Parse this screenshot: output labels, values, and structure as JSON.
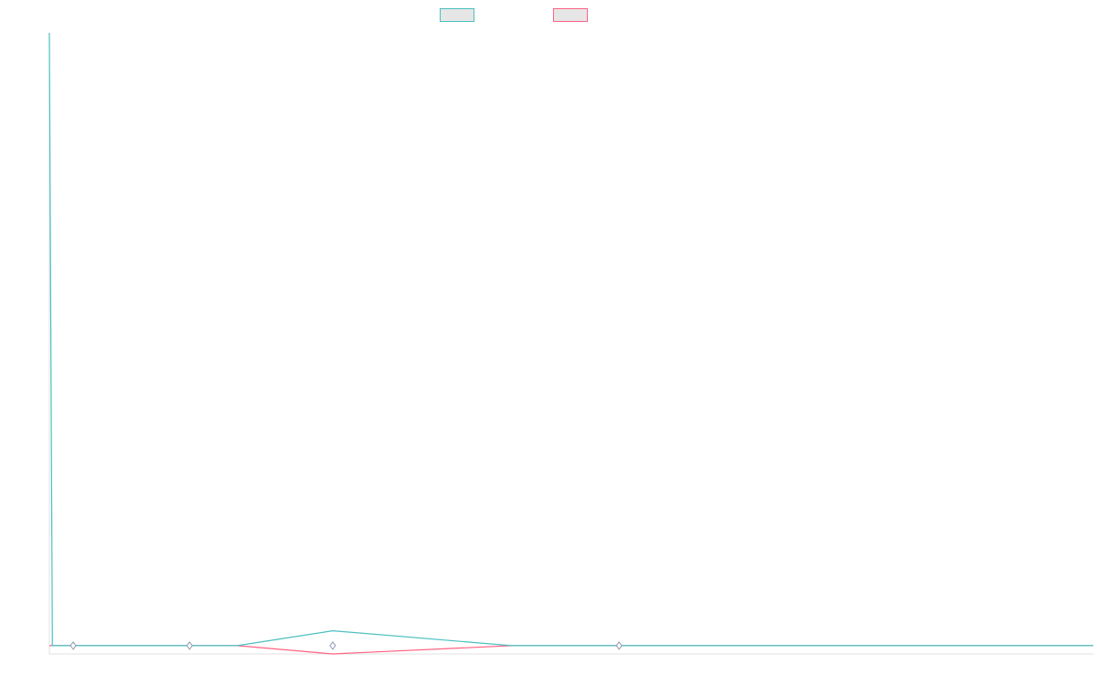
{
  "colors": {
    "series_a": "#4bc0c0",
    "series_b": "#ff6384",
    "point_fill": "#ffffff",
    "axis": "#e0e0e0",
    "legend_fill": "#e6e6e6"
  },
  "chart_data": {
    "type": "line",
    "title": "",
    "xlabel": "",
    "ylabel": "",
    "grid": false,
    "legend_placement": "top-center",
    "x": [
      0,
      1,
      8,
      14,
      47,
      63,
      95,
      155,
      191,
      219,
      252,
      280,
      312,
      350
    ],
    "xlim": [
      0,
      350
    ],
    "ylim": [
      -10,
      740
    ],
    "series": [
      {
        "name": "",
        "color": "#4bc0c0",
        "values": [
          740,
          0,
          0,
          0,
          0,
          0,
          18,
          0,
          0,
          0,
          0,
          0,
          0,
          0
        ]
      },
      {
        "name": "",
        "color": "#ff6384",
        "values": [
          0,
          0,
          0,
          0,
          0,
          0,
          -10,
          0,
          0,
          0,
          0,
          0,
          0,
          0
        ]
      }
    ]
  }
}
